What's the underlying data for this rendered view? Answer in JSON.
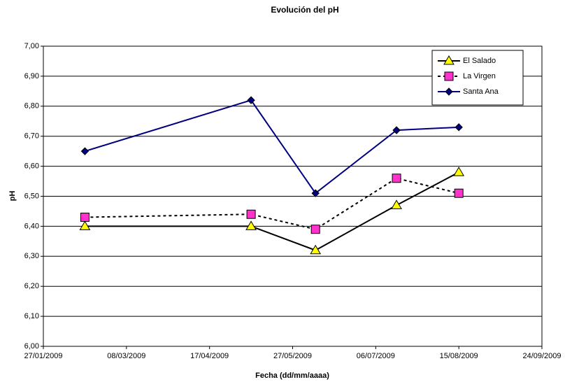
{
  "chart_data": {
    "type": "line",
    "title": "Evolución del pH",
    "x_label": "Fecha (dd/mm/aaaa)",
    "y_label": "pH",
    "x": [
      "2009-02-16",
      "2009-05-07",
      "2009-06-07",
      "2009-07-16",
      "2009-08-15"
    ],
    "series": [
      {
        "name": "El Salado",
        "color": "#000000",
        "marker": "triangle",
        "marker_fill": "#ffff00",
        "dash": false,
        "values": [
          6.4,
          6.4,
          6.32,
          6.47,
          6.58
        ]
      },
      {
        "name": "La Virgen",
        "color": "#000000",
        "marker": "square",
        "marker_fill": "#ff33cc",
        "dash": true,
        "values": [
          6.43,
          6.44,
          6.39,
          6.56,
          6.51
        ]
      },
      {
        "name": "Santa Ana",
        "color": "#000080",
        "marker": "diamond",
        "marker_fill": "#000080",
        "dash": false,
        "values": [
          6.65,
          6.82,
          6.51,
          6.72,
          6.73
        ]
      }
    ],
    "xlim": [
      "2009-01-27",
      "2009-09-24"
    ],
    "xticks": [
      {
        "value": "2009-01-27",
        "label": "27/01/2009"
      },
      {
        "value": "2009-03-08",
        "label": "08/03/2009"
      },
      {
        "value": "2009-04-17",
        "label": "17/04/2009"
      },
      {
        "value": "2009-05-27",
        "label": "27/05/2009"
      },
      {
        "value": "2009-07-06",
        "label": "06/07/2009"
      },
      {
        "value": "2009-08-15",
        "label": "15/08/2009"
      },
      {
        "value": "2009-09-24",
        "label": "24/09/2009"
      }
    ],
    "ylim": [
      6.0,
      7.0
    ],
    "yticks": [
      {
        "value": 6.0,
        "label": "6,00"
      },
      {
        "value": 6.1,
        "label": "6,10"
      },
      {
        "value": 6.2,
        "label": "6,20"
      },
      {
        "value": 6.3,
        "label": "6,30"
      },
      {
        "value": 6.4,
        "label": "6,40"
      },
      {
        "value": 6.5,
        "label": "6,50"
      },
      {
        "value": 6.6,
        "label": "6,60"
      },
      {
        "value": 6.7,
        "label": "6,70"
      },
      {
        "value": 6.8,
        "label": "6,80"
      },
      {
        "value": 6.9,
        "label": "6,90"
      },
      {
        "value": 7.0,
        "label": "7,00"
      }
    ],
    "grid": true,
    "legend_position": "upper-right"
  }
}
